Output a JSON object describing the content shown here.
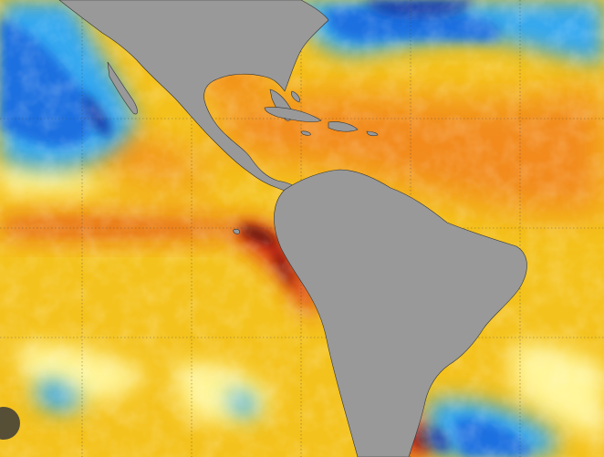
{
  "map": {
    "colors": {
      "land": "#999999",
      "ocean_base": "#f4c21c",
      "ocean_warm": "#f28a1c",
      "ocean_hot": "#d8281a",
      "ocean_extreme": "#5a0c10",
      "ocean_cool": "#fff59a",
      "ocean_cold": "#35a8f0",
      "ocean_colder": "#1b6fe0",
      "ocean_coldest": "#123aa8",
      "grid": "#444444"
    }
  }
}
